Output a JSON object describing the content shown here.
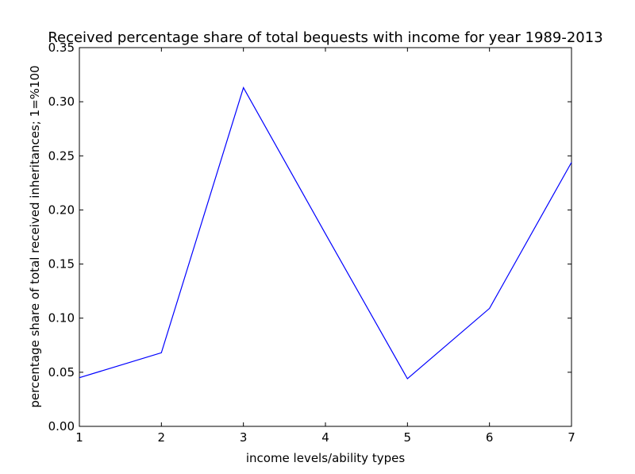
{
  "chart_data": {
    "type": "line",
    "title": "Received percentage share of total bequests with income for year 1989-2013",
    "xlabel": "income levels/ability types",
    "ylabel": "percentage share of total received inheritances; 1=%100",
    "xlim": [
      1,
      7
    ],
    "ylim": [
      0,
      0.35
    ],
    "x_ticks": [
      1,
      2,
      3,
      4,
      5,
      6,
      7
    ],
    "x_tick_labels": [
      "1",
      "2",
      "3",
      "4",
      "5",
      "6",
      "7"
    ],
    "y_ticks": [
      0,
      0.05,
      0.1,
      0.15,
      0.2,
      0.25,
      0.3,
      0.35
    ],
    "y_tick_labels": [
      "0.00",
      "0.05",
      "0.10",
      "0.15",
      "0.20",
      "0.25",
      "0.30",
      "0.35"
    ],
    "grid": false,
    "series": [
      {
        "color": "#0000ff",
        "x": [
          1,
          2,
          3,
          4,
          5,
          6,
          7
        ],
        "y": [
          0.045,
          0.068,
          0.313,
          0.178,
          0.044,
          0.109,
          0.244
        ]
      }
    ]
  }
}
